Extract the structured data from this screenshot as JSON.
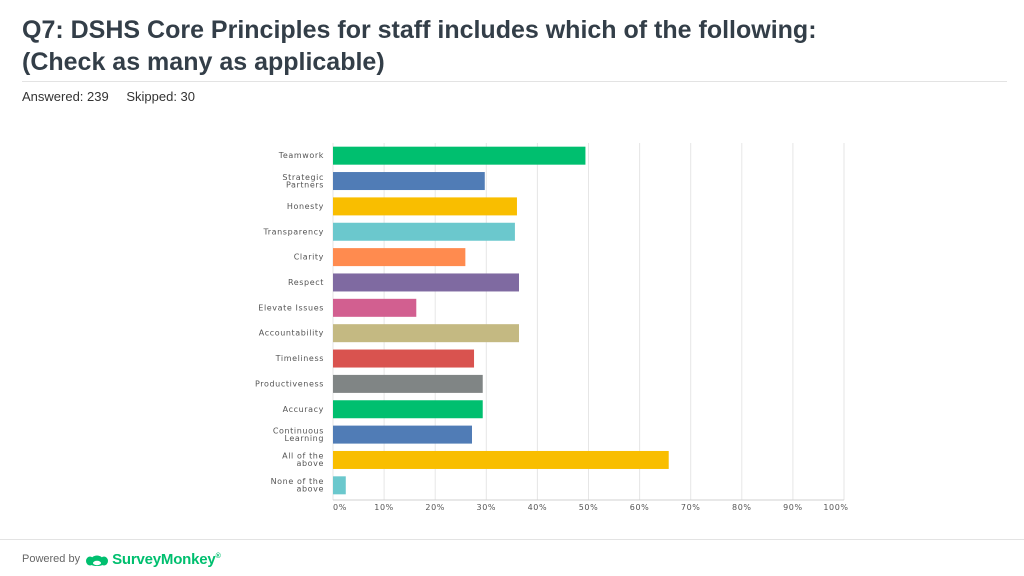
{
  "title_line1": "Q7: DSHS Core Principles for staff includes which of the following:",
  "title_line2": "(Check as many as applicable)",
  "answered": "Answered: 239",
  "skipped": "Skipped: 30",
  "footer": {
    "powered_by": "Powered by",
    "brand": "SurveyMonkey",
    "brand_mark": "®"
  },
  "chart_data": {
    "type": "bar",
    "orientation": "horizontal",
    "categories": [
      [
        "Teamwork"
      ],
      [
        "Strategic",
        "Partners"
      ],
      [
        "Honesty"
      ],
      [
        "Transparency"
      ],
      [
        "Clarity"
      ],
      [
        "Respect"
      ],
      [
        "Elevate Issues"
      ],
      [
        "Accountability"
      ],
      [
        "Timeliness"
      ],
      [
        "Productiveness"
      ],
      [
        "Accuracy"
      ],
      [
        "Continuous",
        "Learning"
      ],
      [
        "All of the",
        "above"
      ],
      [
        "None of the",
        "above"
      ]
    ],
    "values": [
      49.4,
      29.7,
      36.0,
      35.6,
      25.9,
      36.4,
      16.3,
      36.4,
      27.6,
      29.3,
      29.3,
      27.2,
      65.7,
      2.5
    ],
    "colors": [
      "#00bf6f",
      "#507cb6",
      "#f9be00",
      "#6bc8cd",
      "#ff8b4f",
      "#7f6aa1",
      "#d25f90",
      "#c4b982",
      "#d9534f",
      "#808585",
      "#00bf6f",
      "#507cb6",
      "#f9be00",
      "#6bc8cd"
    ],
    "xticks": [
      "0%",
      "10%",
      "20%",
      "30%",
      "40%",
      "50%",
      "60%",
      "70%",
      "80%",
      "90%",
      "100%"
    ],
    "xlim": [
      0,
      100
    ],
    "grid": true,
    "legend": "none"
  }
}
